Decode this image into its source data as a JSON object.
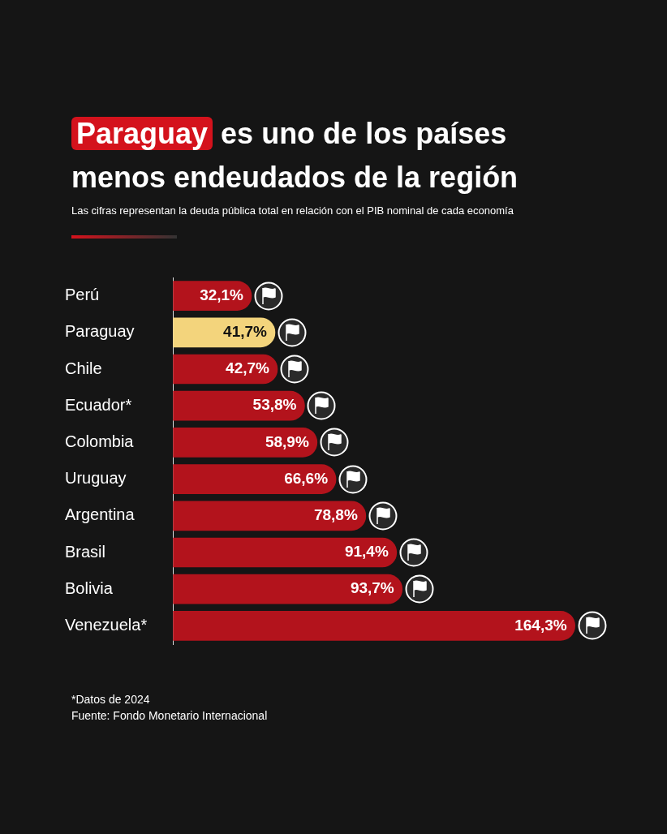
{
  "chart_data": {
    "type": "bar",
    "orientation": "horizontal",
    "title": "Paraguay es uno de los países menos endeudados de la región",
    "subtitle": "Las cifras representan la deuda pública total en relación con el PIB nominal de cada economía",
    "categories": [
      "Perú",
      "Paraguay",
      "Chile",
      "Ecuador*",
      "Colombia",
      "Uruguay",
      "Argentina",
      "Brasil",
      "Bolivia",
      "Venezuela*"
    ],
    "values": [
      32.1,
      41.7,
      42.7,
      53.8,
      58.9,
      66.6,
      78.8,
      91.4,
      93.7,
      164.3
    ],
    "colors": [
      "#b3131c",
      "#f3d47c",
      "#b3131c",
      "#b3131c",
      "#b3131c",
      "#b3131c",
      "#b3131c",
      "#b3131c",
      "#b3131c",
      "#b3131c"
    ],
    "value_labels": [
      "32,1%",
      "41,7%",
      "42,7%",
      "53,8%",
      "58,9%",
      "66,6%",
      "78,8%",
      "91,4%",
      "93,7%",
      "164,3%"
    ],
    "annotations": [
      "*Datos de 2024",
      "Fuente:  Fondo Monetario Internacional"
    ],
    "legend": false
  }
}
